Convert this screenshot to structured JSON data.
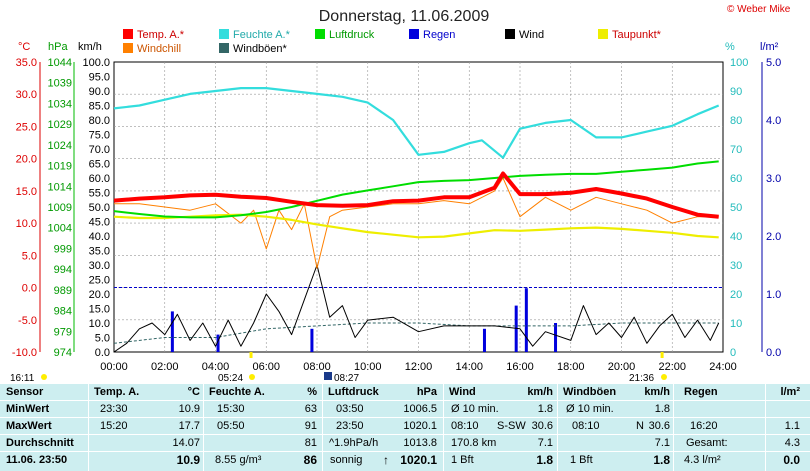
{
  "header": {
    "title": "Donnerstag, 11.06.2009",
    "copyright": "© Weber Mike"
  },
  "legend": [
    {
      "label": "Temp. A.*",
      "color": "#ff0000"
    },
    {
      "label": "Feuchte A.*",
      "color": "#33dddd"
    },
    {
      "label": "Luftdruck",
      "color": "#00dd00"
    },
    {
      "label": "Regen",
      "color": "#0000dd"
    },
    {
      "label": "Wind",
      "color": "#000000"
    },
    {
      "label": "Taupunkt*",
      "color": "#eeee00"
    },
    {
      "label": "Windchill",
      "color": "#ff8000"
    },
    {
      "label": "Windböen*",
      "color": "#336666"
    }
  ],
  "axes": {
    "temp_unit": "°C",
    "pressure_unit": "hPa",
    "wind_unit": "km/h",
    "humidity_unit": "%",
    "rain_unit": "l/m²",
    "temp_ticks": [
      "35.0",
      "30.0",
      "25.0",
      "20.0",
      "15.0",
      "10.0",
      "5.0",
      "0.0",
      "-5.0",
      "-10.0"
    ],
    "pressure_ticks": [
      "1044",
      "1039",
      "1034",
      "1029",
      "1024",
      "1019",
      "1014",
      "1009",
      "1004",
      "999",
      "994",
      "989",
      "984",
      "979",
      "974"
    ],
    "wind_ticks": [
      "100.0",
      "95.0",
      "90.0",
      "85.0",
      "80.0",
      "75.0",
      "70.0",
      "65.0",
      "60.0",
      "55.0",
      "50.0",
      "45.0",
      "40.0",
      "35.0",
      "30.0",
      "25.0",
      "20.0",
      "15.0",
      "10.0",
      "5.0",
      "0.0"
    ],
    "humidity_ticks": [
      "100",
      "90",
      "80",
      "70",
      "60",
      "50",
      "40",
      "30",
      "20",
      "10",
      "0"
    ],
    "rain_ticks": [
      "5.0",
      "4.0",
      "3.0",
      "2.0",
      "1.0",
      "0.0"
    ],
    "time_ticks": [
      "00:00",
      "02:00",
      "04:00",
      "06:00",
      "08:00",
      "10:00",
      "12:00",
      "14:00",
      "16:00",
      "18:00",
      "20:00",
      "22:00",
      "24:00"
    ]
  },
  "sun": {
    "sunrise": "05:24",
    "sunset": "21:36",
    "moonrise": "08:27",
    "moonset": "16:11"
  },
  "chart_data": {
    "type": "line",
    "x_unit": "hours",
    "series": [
      {
        "name": "Temp. A.*",
        "unit": "°C",
        "color": "#ff0000",
        "x": [
          0,
          1,
          2,
          3,
          4,
          5,
          6,
          7,
          8,
          9,
          10,
          11,
          12,
          13,
          14,
          15,
          15.33,
          16,
          17,
          18,
          19,
          20,
          21,
          22,
          23,
          23.83
        ],
        "values": [
          13.5,
          13.8,
          14,
          14.3,
          14.4,
          14.1,
          13.9,
          13.3,
          12.8,
          12.7,
          12.8,
          13.4,
          13.5,
          14,
          14,
          15.5,
          17.7,
          14.5,
          14.5,
          14.7,
          15.3,
          14.6,
          13.8,
          12.5,
          11.3,
          11
        ]
      },
      {
        "name": "Feuchte A.*",
        "unit": "%",
        "color": "#33dddd",
        "x": [
          0,
          1,
          2,
          3,
          4,
          5,
          6,
          7,
          8,
          9,
          10,
          11,
          12,
          13,
          14,
          14.5,
          15.33,
          16,
          17,
          18,
          19,
          20,
          21,
          22,
          23,
          23.83
        ],
        "values": [
          84,
          85,
          87,
          89,
          90,
          91,
          91,
          90,
          89,
          88,
          86,
          80,
          68,
          69,
          72,
          73,
          67,
          77,
          79,
          80,
          74,
          74,
          76,
          78,
          82,
          85
        ]
      },
      {
        "name": "Luftdruck",
        "unit": "hPa",
        "color": "#00dd00",
        "x": [
          0,
          1,
          2,
          3,
          4,
          5,
          6,
          7,
          8,
          9,
          10,
          11,
          12,
          13,
          14,
          15,
          16,
          17,
          18,
          19,
          20,
          21,
          22,
          23,
          23.83
        ],
        "values": [
          1008,
          1007.3,
          1006.7,
          1006.5,
          1006.5,
          1007,
          1007.8,
          1009,
          1010.5,
          1012,
          1013,
          1014,
          1015,
          1015.3,
          1015.5,
          1016,
          1016.5,
          1016.8,
          1017,
          1017,
          1017.5,
          1018,
          1018.5,
          1019.5,
          1020
        ]
      },
      {
        "name": "Taupunkt*",
        "unit": "°C",
        "color": "#eeee00",
        "x": [
          0,
          1,
          2,
          3,
          4,
          5,
          6,
          7,
          8,
          9,
          10,
          11,
          12,
          13,
          14,
          15,
          16,
          17,
          18,
          19,
          20,
          21,
          22,
          23,
          23.83
        ],
        "values": [
          11,
          10.8,
          10.8,
          11,
          11.2,
          11.3,
          11,
          10.5,
          9.8,
          9.2,
          8.6,
          8.2,
          7.8,
          7.9,
          8.4,
          8.9,
          8.8,
          9,
          9.2,
          9.3,
          9.1,
          8.8,
          8.5,
          8,
          7.8
        ]
      },
      {
        "name": "Windchill",
        "unit": "°C",
        "color": "#ff8000",
        "x": [
          0,
          1,
          2,
          3,
          4,
          5,
          5.5,
          6,
          6.5,
          7,
          7.5,
          8,
          8.5,
          9,
          10,
          11,
          12,
          13,
          14,
          15,
          15.33,
          16,
          17,
          18,
          19,
          20,
          21,
          22,
          23,
          23.83
        ],
        "values": [
          13,
          13,
          12.5,
          12,
          13,
          10,
          12,
          6,
          12,
          9,
          13,
          3,
          11,
          12,
          12.5,
          13,
          13,
          13.5,
          13,
          15,
          17,
          11,
          14,
          12,
          14,
          13,
          12,
          10,
          11,
          11
        ]
      },
      {
        "name": "Wind",
        "unit": "km/h",
        "color": "#000000",
        "x": [
          0,
          0.5,
          1,
          1.5,
          2,
          2.5,
          3,
          3.5,
          4,
          4.5,
          5,
          5.5,
          6,
          6.5,
          7,
          7.5,
          8,
          8.5,
          9,
          9.5,
          10,
          11,
          12,
          13,
          14,
          15,
          16,
          16.5,
          17,
          18,
          18.5,
          19,
          19.5,
          20,
          20.5,
          21,
          21.5,
          22,
          22.5,
          23,
          23.5,
          23.83
        ],
        "values": [
          0,
          3,
          8,
          10,
          6,
          13,
          4,
          10,
          2,
          11,
          2,
          10,
          20,
          14,
          6,
          18,
          30,
          12,
          16,
          5,
          11,
          12,
          7,
          9,
          9,
          9,
          8,
          2,
          7,
          4,
          16,
          6,
          10,
          5,
          12,
          3,
          9,
          13,
          5,
          11,
          4,
          10
        ]
      },
      {
        "name": "Windböen*",
        "unit": "km/h",
        "color": "#336666",
        "x": [
          0,
          2,
          4,
          6,
          8,
          10,
          12,
          14,
          16,
          18,
          20,
          22,
          23.83
        ],
        "values": [
          3,
          5,
          5,
          8,
          9,
          10,
          10,
          9,
          9,
          9,
          10,
          10,
          10
        ]
      },
      {
        "name": "Regen",
        "unit": "l/m²",
        "color": "#0000dd",
        "x": [
          2.3,
          4.1,
          7.8,
          14.6,
          15.85,
          16.25,
          17.4
        ],
        "values": [
          0.7,
          0.3,
          0.4,
          0.4,
          0.8,
          1.1,
          0.5
        ]
      }
    ]
  },
  "stats": {
    "headers": {
      "sensor": "Sensor",
      "temp": "Temp. A.",
      "temp_unit": "°C",
      "hum": "Feuchte A.",
      "hum_unit": "%",
      "press": "Luftdruck",
      "press_unit": "hPa",
      "wind": "Wind",
      "wind_unit": "km/h",
      "gust": "Windböen",
      "gust_unit": "km/h",
      "rain": "Regen",
      "rain_unit": "l/m²"
    },
    "rows": {
      "min": "MinWert",
      "max": "MaxWert",
      "avg": "Durchschnitt",
      "now": "11.06. 23:50"
    },
    "temp": {
      "min_t": "23:30",
      "min_v": "10.9",
      "max_t": "15:20",
      "max_v": "17.7",
      "avg": "14.07",
      "now": "10.9"
    },
    "hum": {
      "min_t": "15:30",
      "min_v": "63",
      "max_t": "05:50",
      "max_v": "91",
      "avg": "81",
      "now_extra": "8.55 g/m³",
      "now": "86"
    },
    "press": {
      "min_t": "03:50",
      "min_v": "1006.5",
      "max_t": "23:50",
      "max_v": "1020.1",
      "avg_extra": "^1.9hPa/h",
      "avg": "1013.8",
      "now_extra": "sonnig",
      "now_arrow": "↑",
      "now": "1020.1"
    },
    "wind": {
      "min_l": "Ø 10 min.",
      "min_v": "1.8",
      "max_t": "08:10",
      "max_dir": "S-SW",
      "max_v": "30.6",
      "avg_l": "170.8 km",
      "avg": "7.1",
      "now_l": "1 Bft",
      "now": "1.8"
    },
    "gust": {
      "min_l": "Ø 10 min.",
      "min_v": "1.8",
      "max_t": "08:10",
      "max_dir": "N",
      "max_v": "30.6",
      "avg": "7.1",
      "now_l": "1 Bft",
      "now": "1.8"
    },
    "rain": {
      "max_t": "16:20",
      "max_v": "1.1",
      "avg_l": "Gesamt:",
      "avg": "4.3",
      "now_l": "4.3 l/m²",
      "now": "0.0"
    }
  }
}
